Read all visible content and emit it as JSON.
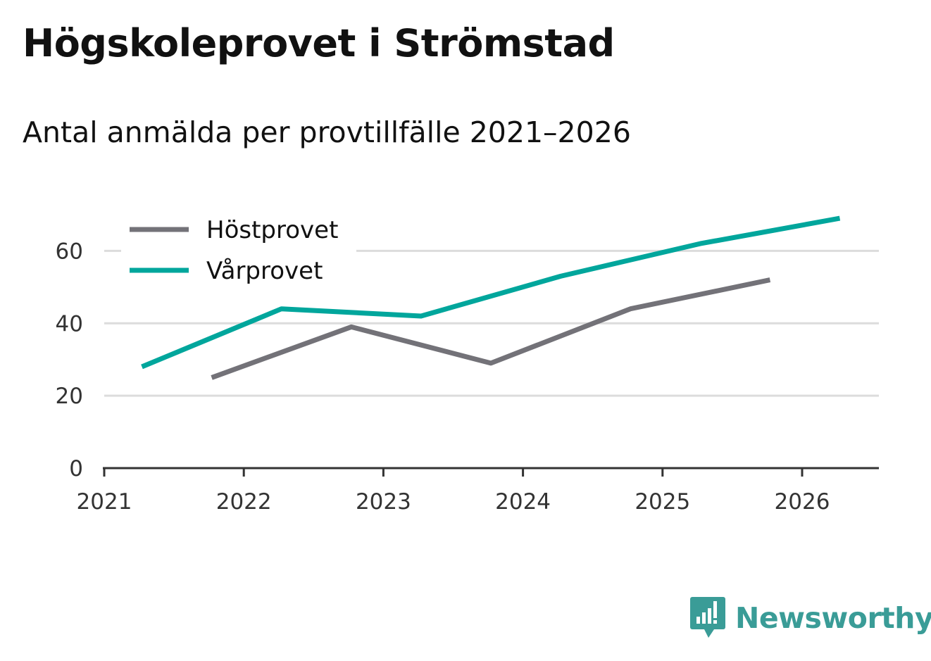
{
  "title": "Högskoleprovet i Strömstad",
  "subtitle": "Antal anmälda per provtillfälle 2021–2026",
  "brand": {
    "name": "Newsworthy",
    "icon": "newsworthy-logo-icon"
  },
  "colors": {
    "hostprovet": "#737278",
    "varprovet": "#00a69c",
    "grid": "#dcdcdc",
    "axis": "#333333"
  },
  "chart_data": {
    "type": "line",
    "title": "Högskoleprovet i Strömstad",
    "subtitle": "Antal anmälda per provtillfälle 2021–2026",
    "xlabel": "",
    "ylabel": "",
    "xlim": [
      2021,
      2026.55
    ],
    "ylim": [
      0,
      70
    ],
    "x_ticks": [
      "2021",
      "2022",
      "2023",
      "2024",
      "2025",
      "2026"
    ],
    "y_ticks": [
      "0",
      "20",
      "40",
      "60"
    ],
    "grid": true,
    "legend_position": "top-left",
    "series": [
      {
        "name": "Höstprovet",
        "color": "#737278",
        "x": [
          2021.77,
          2022.77,
          2023.77,
          2024.77,
          2025.77
        ],
        "values": [
          25,
          39,
          29,
          44,
          52
        ]
      },
      {
        "name": "Vårprovet",
        "color": "#00a69c",
        "x": [
          2021.27,
          2022.27,
          2023.27,
          2024.27,
          2025.27,
          2026.27
        ],
        "values": [
          28,
          44,
          42,
          53,
          62,
          69
        ]
      }
    ]
  }
}
